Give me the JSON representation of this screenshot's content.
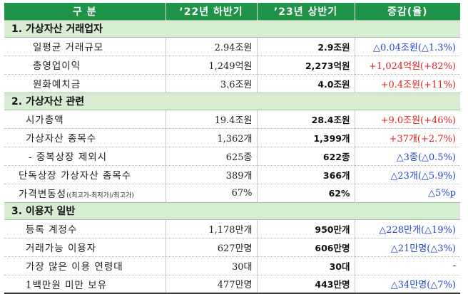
{
  "header": {
    "col1": "구 분",
    "col2": "’22년 하반기",
    "col3": "’23년 상반기",
    "col4": "증감(율)"
  },
  "sections": [
    {
      "title": "1. 가상자산 거래업자",
      "rows": [
        {
          "label": "일평균 거래규모",
          "prev": "2.94조원",
          "curr": "2.9조원",
          "change": "△0.04조원(△1.3%)",
          "color": "#2244cc"
        },
        {
          "label": "총영업이익",
          "prev": "1,249억원",
          "curr": "2,273억원",
          "change": "+1,024억원(+82%)",
          "color": "#e01e1e"
        },
        {
          "label": "원화예치금",
          "prev": "3.6조원",
          "curr": "4.0조원",
          "change": "+0.4조원(+11%)",
          "color": "#e01e1e"
        }
      ]
    },
    {
      "title": "2. 가상자산 관련",
      "rows": [
        {
          "label": "시가총액",
          "prev": "19.4조원",
          "curr": "28.4조원",
          "change": "+9.0조원(+46%)",
          "color": "#e01e1e"
        },
        {
          "label": "가상자산 종목수",
          "prev": "1,362개",
          "curr": "1,399개",
          "change": "+37개(+2.7%)",
          "color": "#e01e1e"
        },
        {
          "label": "- 중복상장 제외시",
          "prev": "625종",
          "curr": "622종",
          "change": "△3종(△0.5%)",
          "color": "#2244cc"
        },
        {
          "label": "단독상장 가상자산 종목수",
          "prev": "389개",
          "curr": "366개",
          "change": "△23개(△5.9%)",
          "color": "#2244cc"
        },
        {
          "label": "가격변동성",
          "label_note": "((최고가-최저가)/최고가)",
          "prev": "67%",
          "curr": "62%",
          "change": "△5%p",
          "color": "#2244cc"
        }
      ]
    },
    {
      "title": "3. 이용자 일반",
      "rows": [
        {
          "label": "등록 계정수",
          "prev": "1,178만개",
          "curr": "950만개",
          "change": "△228만개(△19%)",
          "color": "#2244cc"
        },
        {
          "label": "거래가능 이용자",
          "prev": "627만명",
          "curr": "606만명",
          "change": "△21만명(△3%)",
          "color": "#2244cc"
        },
        {
          "label": "가장 많은 이용 연령대",
          "prev": "30대",
          "curr": "30대",
          "change": "-",
          "color": "#111111"
        },
        {
          "label": "1백만원 미만 보유",
          "prev": "477만명",
          "curr": "443만명",
          "change": "△34만명(△7%)",
          "color": "#2244cc"
        }
      ]
    }
  ]
}
